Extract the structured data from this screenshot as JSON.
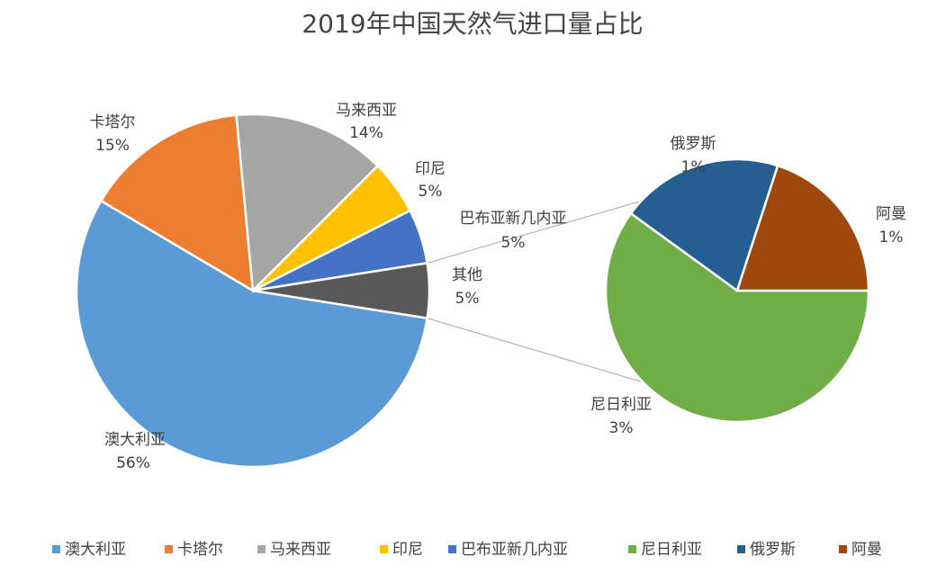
{
  "chart_data": {
    "type": "pie",
    "subtype": "pie-of-pie",
    "title": "2019年中国天然气进口量占比",
    "primary": {
      "slices": [
        {
          "name": "澳大利亚",
          "value": 56,
          "label": "56%",
          "color": "#5B9BD5"
        },
        {
          "name": "卡塔尔",
          "value": 15,
          "label": "15%",
          "color": "#ED7D31"
        },
        {
          "name": "马来西亚",
          "value": 14,
          "label": "14%",
          "color": "#A5A5A5"
        },
        {
          "name": "印尼",
          "value": 5,
          "label": "5%",
          "color": "#FFC000"
        },
        {
          "name": "巴布亚新几内亚",
          "value": 5,
          "label": "5%",
          "color": "#4472C4"
        },
        {
          "name": "其他",
          "value": 5,
          "label": "5%",
          "color": "#595959"
        }
      ]
    },
    "secondary": {
      "parent": "其他",
      "slices": [
        {
          "name": "尼日利亚",
          "value": 3,
          "label": "3%",
          "color": "#70AD47"
        },
        {
          "name": "俄罗斯",
          "value": 1,
          "label": "1%",
          "color": "#255E91"
        },
        {
          "name": "阿曼",
          "value": 1,
          "label": "1%",
          "color": "#9E480E"
        }
      ]
    },
    "legend": {
      "position": "bottom",
      "items": [
        {
          "name": "澳大利亚",
          "color": "#5B9BD5"
        },
        {
          "name": "卡塔尔",
          "color": "#ED7D31"
        },
        {
          "name": "马来西亚",
          "color": "#A5A5A5"
        },
        {
          "name": "印尼",
          "color": "#FFC000"
        },
        {
          "name": "巴布亚新几内亚",
          "color": "#4472C4"
        },
        {
          "name": "尼日利亚",
          "color": "#70AD47"
        },
        {
          "name": "俄罗斯",
          "color": "#255E91"
        },
        {
          "name": "阿曼",
          "color": "#9E480E"
        }
      ]
    }
  }
}
